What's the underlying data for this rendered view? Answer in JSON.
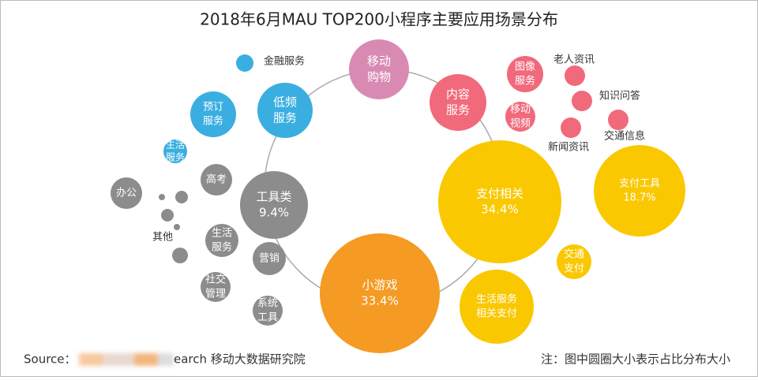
{
  "title": "2018年6月MAU TOP200小程序主要应用场景分布",
  "source": {
    "prefix": "Source：",
    "text": "earch 移动大数据研究院"
  },
  "note": "注：图中圆圈大小表示占比分布大小",
  "nodes": [
    {
      "lines": [
        "移动",
        "购物"
      ]
    },
    {
      "lines": [
        "内容",
        "服务"
      ]
    },
    {
      "lines": [
        "低频",
        "服务"
      ]
    },
    {
      "lines": [
        "预订",
        "服务"
      ]
    },
    {
      "lines": [
        "金融服务"
      ]
    },
    {
      "lines": [
        "生活",
        "服务"
      ]
    },
    {
      "lines": [
        "工具类",
        "9.4%"
      ]
    },
    {
      "lines": [
        "高考"
      ]
    },
    {
      "lines": [
        "办公"
      ]
    },
    {
      "lines": [
        "其他"
      ]
    },
    {
      "lines": [
        "生活",
        "服务"
      ]
    },
    {
      "lines": [
        "营销"
      ]
    },
    {
      "lines": [
        "社交",
        "管理"
      ]
    },
    {
      "lines": [
        "系统",
        "工具"
      ]
    },
    {
      "lines": [
        "小游戏",
        "33.4%"
      ]
    },
    {
      "lines": [
        "支付相关",
        "34.4%"
      ]
    },
    {
      "lines": [
        "支付工具",
        "18.7%"
      ]
    },
    {
      "lines": [
        "交通",
        "支付"
      ]
    },
    {
      "lines": [
        "生活服务",
        "相关支付"
      ]
    },
    {
      "lines": [
        "图像",
        "服务"
      ]
    },
    {
      "lines": [
        "移动",
        "视频"
      ]
    },
    {
      "lines": [
        "老人资讯"
      ]
    },
    {
      "lines": [
        "知识问答"
      ]
    },
    {
      "lines": [
        "新闻资讯"
      ]
    },
    {
      "lines": [
        "交通信息"
      ]
    }
  ]
}
